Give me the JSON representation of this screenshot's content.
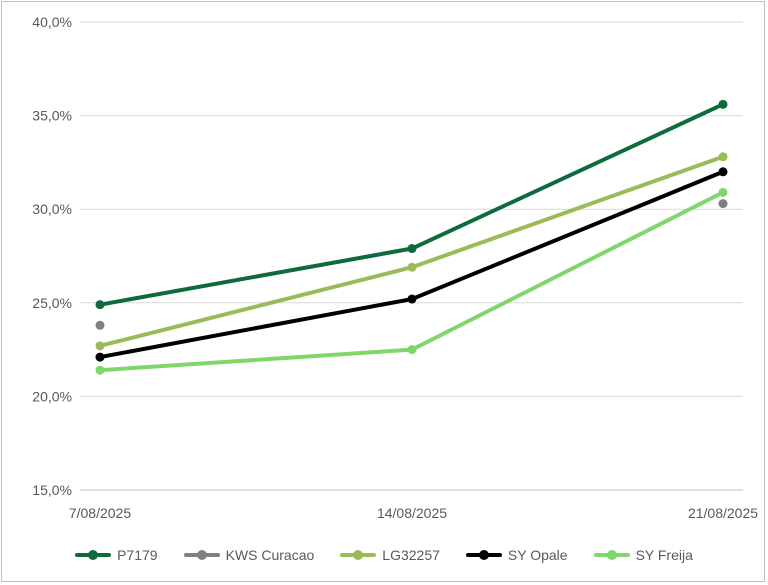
{
  "chart_data": {
    "type": "line",
    "title": "",
    "xlabel": "",
    "ylabel": "",
    "categories": [
      "7/08/2025",
      "14/08/2025",
      "21/08/2025"
    ],
    "y_ticks": [
      "15,0%",
      "20,0%",
      "25,0%",
      "30,0%",
      "35,0%",
      "40,0%"
    ],
    "ylim": [
      15,
      40
    ],
    "grid": true,
    "legend_position": "bottom",
    "series": [
      {
        "name": "P7179",
        "color": "#0e6b3f",
        "values": [
          24.9,
          27.9,
          35.6
        ],
        "show_line": true
      },
      {
        "name": "KWS Curacao",
        "color": "#808080",
        "values": [
          23.8,
          null,
          30.3
        ],
        "show_line": false
      },
      {
        "name": "LG32257",
        "color": "#9bbb59",
        "values": [
          22.7,
          26.9,
          32.8
        ],
        "show_line": true
      },
      {
        "name": "SY Opale",
        "color": "#000000",
        "values": [
          22.1,
          25.2,
          32.0
        ],
        "show_line": true
      },
      {
        "name": "SY Freija",
        "color": "#7fd66a",
        "values": [
          21.4,
          22.5,
          30.9
        ],
        "show_line": true
      }
    ]
  }
}
